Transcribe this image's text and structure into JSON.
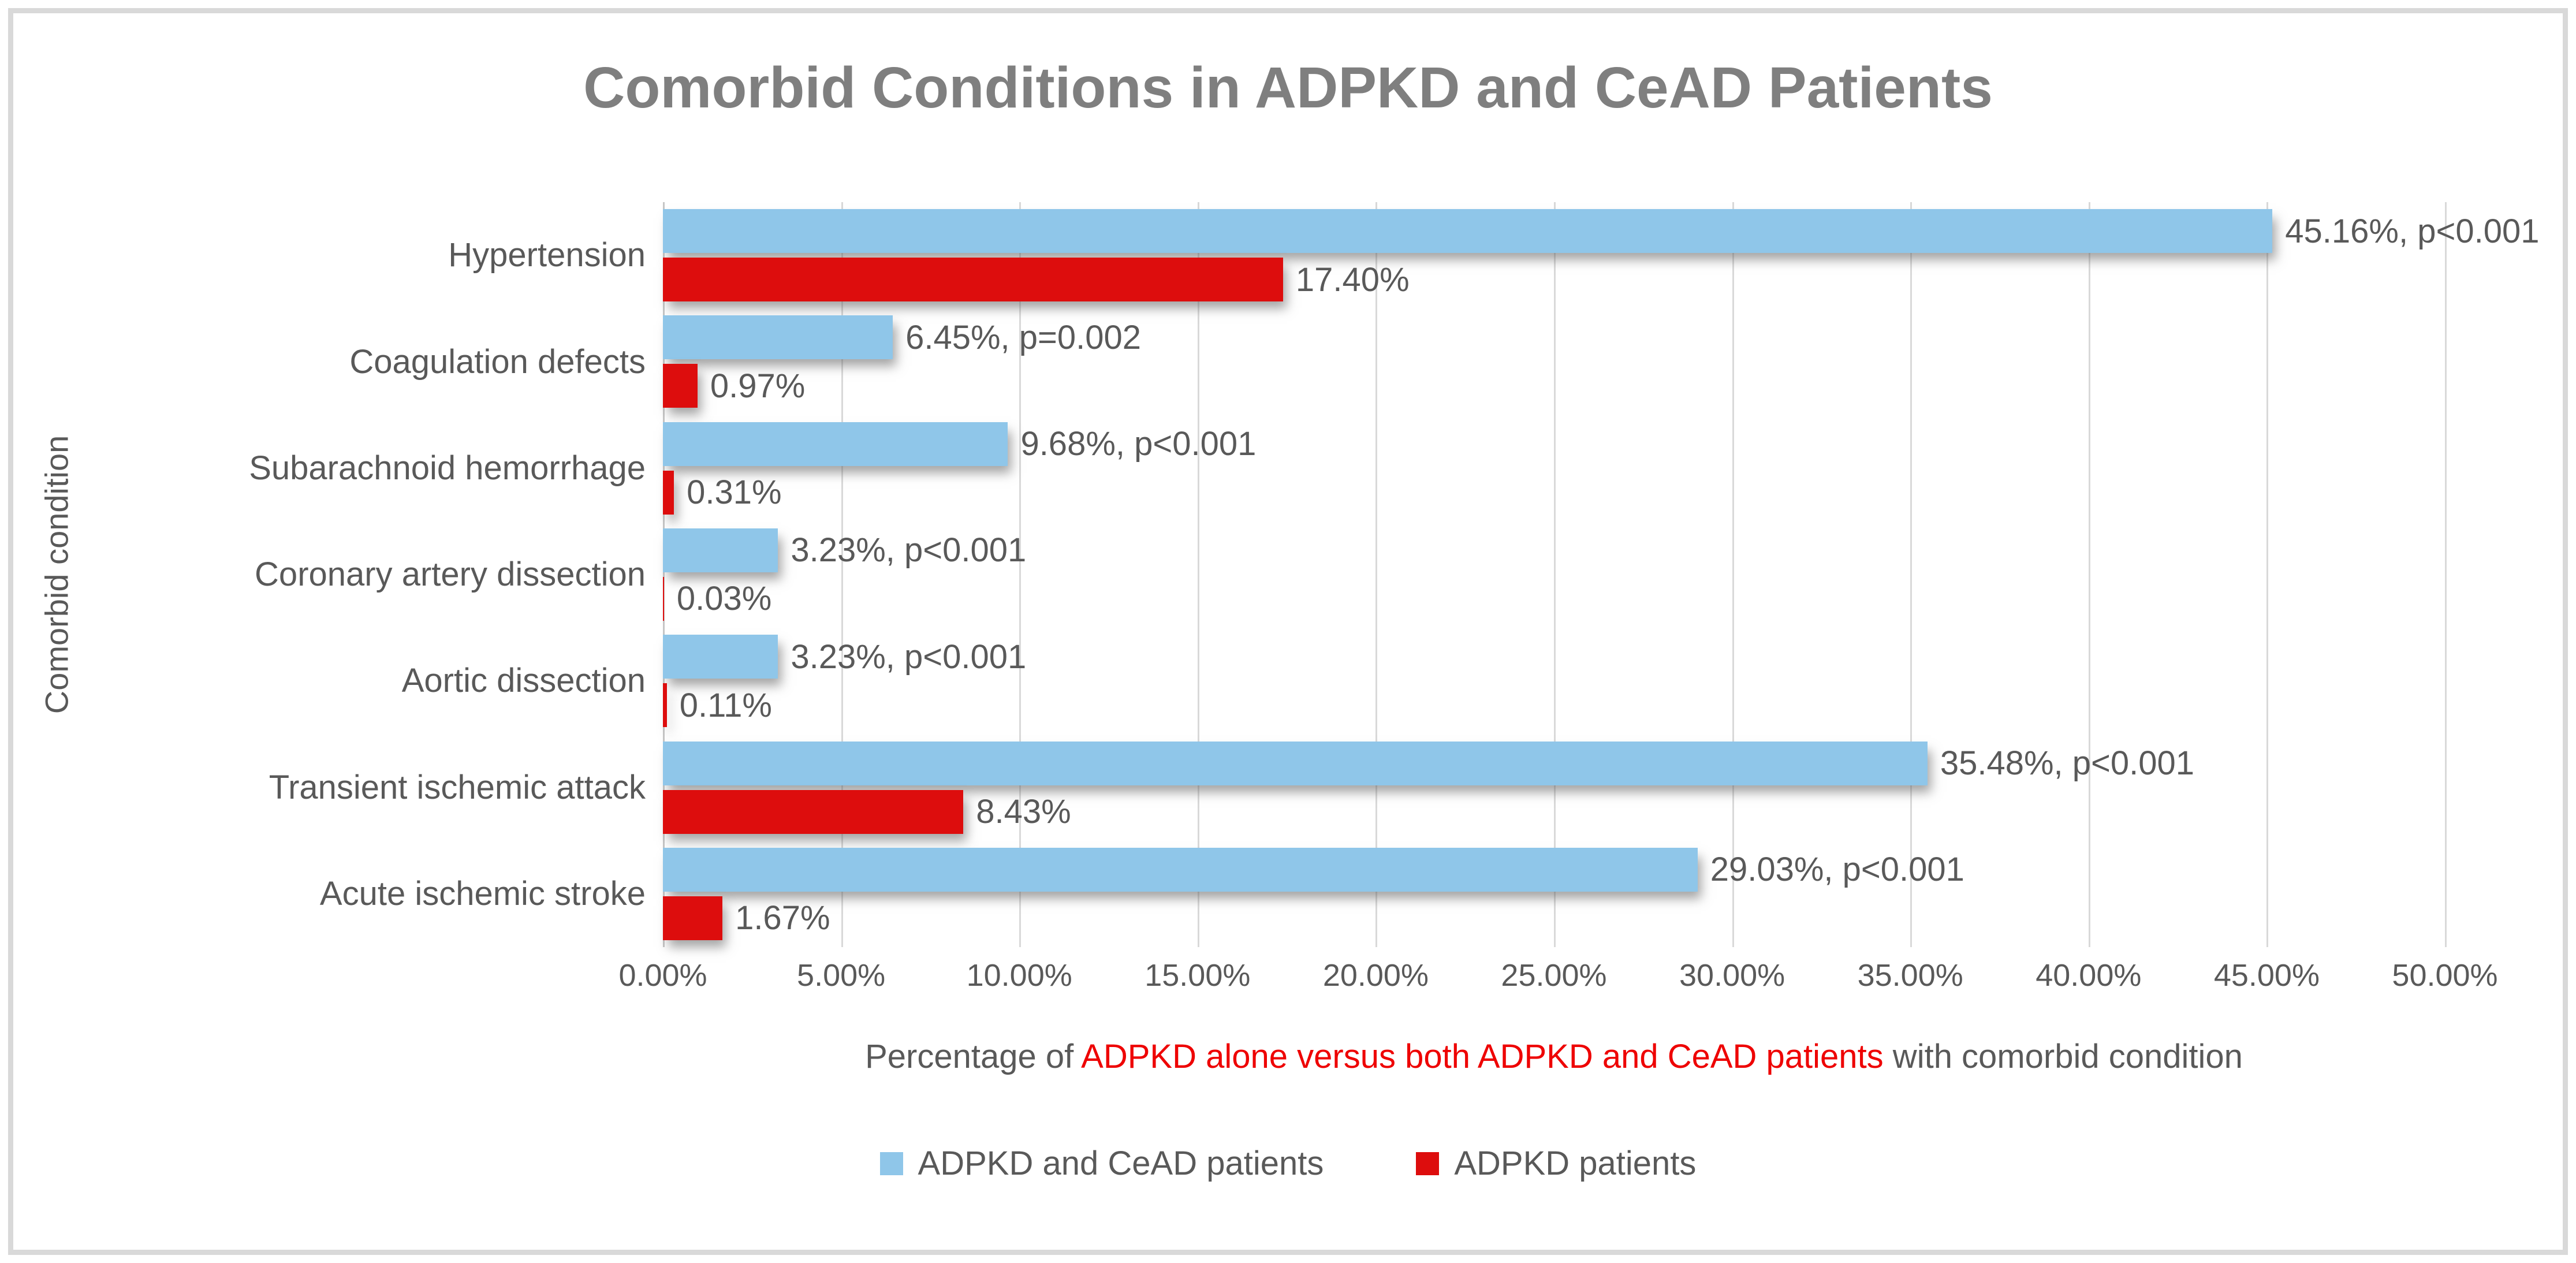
{
  "title": "Comorbid Conditions in ADPKD and CeAD Patients",
  "colors": {
    "series_blue": "#8FC6E9",
    "series_red": "#DD0D0D",
    "title_gray": "#7F7F7F",
    "text_gray": "#595959",
    "gridline": "#D9D9D9",
    "xlabel_red": "#EE0000"
  },
  "chart_data": {
    "type": "bar",
    "orientation": "horizontal",
    "title": "Comorbid Conditions in ADPKD and CeAD Patients",
    "ylabel": "Comorbid condition",
    "xlabel_parts": {
      "prefix": "Percentage of ",
      "highlight": "ADPKD alone versus both ADPKD and CeAD patients",
      "suffix": " with comorbid condition"
    },
    "xlim": [
      0,
      50
    ],
    "xmax": 50,
    "grid": true,
    "legend_position": "bottom",
    "x_ticks": [
      "0.00%",
      "5.00%",
      "10.00%",
      "15.00%",
      "20.00%",
      "25.00%",
      "30.00%",
      "35.00%",
      "40.00%",
      "45.00%",
      "50.00%"
    ],
    "categories": [
      "Hypertension",
      "Coagulation defects",
      "Subarachnoid hemorrhage",
      "Coronary artery dissection",
      "Aortic dissection",
      "Transient ischemic attack",
      "Acute ischemic stroke"
    ],
    "series": [
      {
        "name": "ADPKD and CeAD patients",
        "color": "#8FC6E9",
        "values": [
          45.16,
          6.45,
          9.68,
          3.23,
          3.23,
          35.48,
          29.03
        ],
        "labels": [
          "45.16%, p<0.001",
          "6.45%, p=0.002",
          "9.68%, p<0.001",
          "3.23%, p<0.001",
          "3.23%, p<0.001",
          "35.48%, p<0.001",
          "29.03%, p<0.001"
        ]
      },
      {
        "name": "ADPKD patients",
        "color": "#DD0D0D",
        "values": [
          17.4,
          0.97,
          0.31,
          0.03,
          0.11,
          8.43,
          1.67
        ],
        "labels": [
          "17.40%",
          "0.97%",
          "0.31%",
          "0.03%",
          "0.11%",
          "8.43%",
          "1.67%"
        ]
      }
    ]
  },
  "legend": {
    "items": [
      {
        "label": "ADPKD and CeAD patients",
        "color": "#8FC6E9"
      },
      {
        "label": "ADPKD patients",
        "color": "#DD0D0D"
      }
    ]
  }
}
